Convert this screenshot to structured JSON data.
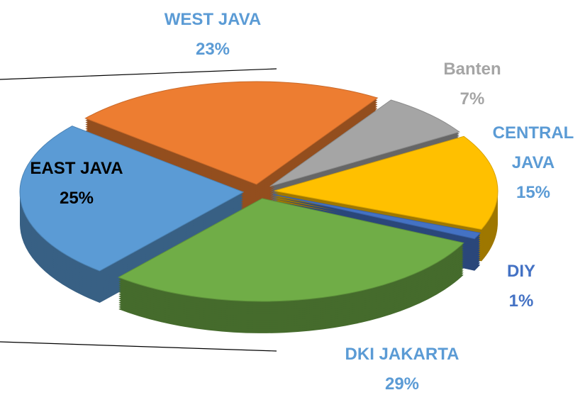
{
  "chart_data": {
    "type": "pie",
    "categories": [
      "WEST JAVA",
      "Banten",
      "CENTRAL JAVA",
      "DIY",
      "DKI JAKARTA",
      "EAST JAVA"
    ],
    "values": [
      23,
      7,
      15,
      1,
      29,
      25
    ],
    "value_labels": [
      "23%",
      "7%",
      "15%",
      "1%",
      "29%",
      "25%"
    ],
    "colors": [
      "#ed7d31",
      "#a5a5a5",
      "#ffc000",
      "#4472c4",
      "#70ad47",
      "#5b9bd5"
    ],
    "label_colors": [
      "#5b9bd5",
      "#a5a5a5",
      "#5b9bd5",
      "#4472c4",
      "#5b9bd5",
      "#000000"
    ]
  }
}
